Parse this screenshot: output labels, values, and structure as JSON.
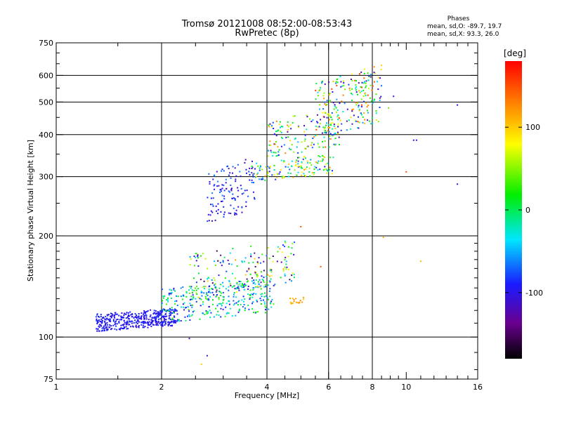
{
  "chart_data": {
    "type": "scatter",
    "title": "Tromsø 20121008 08:52:00-08:53:43",
    "subtitle": "RwPretec (8p)",
    "stats": {
      "heading": "Phases",
      "o_mode": "mean, sd,O: -89.7, 19.7",
      "x_mode": "mean, sd,X:  93.3, 26.0"
    },
    "xlabel": "Frequency [MHz]",
    "ylabel": "Stationary phase Virtual Height [km]",
    "x_scale": "log",
    "y_scale": "log",
    "xlim": [
      1,
      16
    ],
    "ylim": [
      75,
      750
    ],
    "x_ticks": [
      {
        "value": 1,
        "label": "1"
      },
      {
        "value": 2,
        "label": "2"
      },
      {
        "value": 4,
        "label": "4"
      },
      {
        "value": 6,
        "label": "6"
      },
      {
        "value": 8,
        "label": "8"
      },
      {
        "value": 10,
        "label": "10"
      },
      {
        "value": 16,
        "label": "16"
      }
    ],
    "x_major_grid": [
      2,
      4,
      6,
      8
    ],
    "x_minor_ticks": [
      1.5,
      2.5,
      3,
      3.5,
      4.5,
      5,
      5.5,
      6.5,
      7,
      7.5,
      8.5,
      9,
      9.5,
      11,
      12,
      13,
      14,
      15
    ],
    "y_ticks": [
      {
        "value": 75,
        "label": "75"
      },
      {
        "value": 100,
        "label": "100"
      },
      {
        "value": 200,
        "label": "200"
      },
      {
        "value": 300,
        "label": "300"
      },
      {
        "value": 400,
        "label": "400"
      },
      {
        "value": 500,
        "label": "500"
      },
      {
        "value": 600,
        "label": "600"
      },
      {
        "value": 750,
        "label": "750"
      }
    ],
    "y_major_grid": [
      100,
      200,
      300,
      400,
      500,
      600
    ],
    "y_minor_ticks": [
      80,
      90,
      110,
      120,
      130,
      140,
      150,
      160,
      170,
      180,
      190,
      250,
      350,
      450,
      550,
      650,
      700
    ],
    "grid": true,
    "colorbar": {
      "label": "[deg]",
      "range": [
        -180,
        180
      ],
      "ticks": [
        {
          "value": 100,
          "label": "100"
        },
        {
          "value": 0,
          "label": "0"
        },
        {
          "value": -100,
          "label": "-100"
        }
      ]
    },
    "clusters": [
      {
        "freq": [
          1.3,
          2.2
        ],
        "height": [
          104,
          122
        ],
        "phase": [
          -110,
          -80
        ],
        "count": 420
      },
      {
        "freq": [
          2.0,
          4.2
        ],
        "height": [
          110,
          150
        ],
        "phase": [
          -110,
          40
        ],
        "count": 330
      },
      {
        "freq": [
          2.4,
          4.8
        ],
        "height": [
          130,
          195
        ],
        "phase": [
          -160,
          120
        ],
        "count": 180
      },
      {
        "freq": [
          4.6,
          5.1
        ],
        "height": [
          125,
          132
        ],
        "phase": [
          100,
          130
        ],
        "count": 18
      },
      {
        "freq": [
          2.7,
          3.7
        ],
        "height": [
          215,
          345
        ],
        "phase": [
          -120,
          -60
        ],
        "count": 130
      },
      {
        "freq": [
          3.6,
          6.2
        ],
        "height": [
          290,
          350
        ],
        "phase": [
          -100,
          120
        ],
        "count": 140
      },
      {
        "freq": [
          4.0,
          6.5
        ],
        "height": [
          340,
          480
        ],
        "phase": [
          -130,
          140
        ],
        "count": 150
      },
      {
        "freq": [
          5.5,
          8.5
        ],
        "height": [
          380,
          650
        ],
        "phase": [
          -140,
          160
        ],
        "count": 220
      }
    ],
    "outliers": [
      {
        "freq": 10.5,
        "height": 385,
        "phase": -90
      },
      {
        "freq": 10.7,
        "height": 385,
        "phase": -95
      },
      {
        "freq": 10.0,
        "height": 310,
        "phase": 150
      },
      {
        "freq": 14.0,
        "height": 490,
        "phase": -100
      },
      {
        "freq": 14.0,
        "height": 285,
        "phase": -110
      },
      {
        "freq": 11.0,
        "height": 168,
        "phase": 110
      },
      {
        "freq": 8.6,
        "height": 198,
        "phase": 110
      },
      {
        "freq": 5.0,
        "height": 213,
        "phase": 150
      },
      {
        "freq": 5.7,
        "height": 162,
        "phase": 150
      },
      {
        "freq": 2.4,
        "height": 99,
        "phase": -120
      },
      {
        "freq": 2.7,
        "height": 88,
        "phase": -110
      },
      {
        "freq": 2.6,
        "height": 83,
        "phase": 100
      },
      {
        "freq": 8.9,
        "height": 480,
        "phase": 40
      },
      {
        "freq": 9.2,
        "height": 520,
        "phase": -90
      }
    ]
  }
}
